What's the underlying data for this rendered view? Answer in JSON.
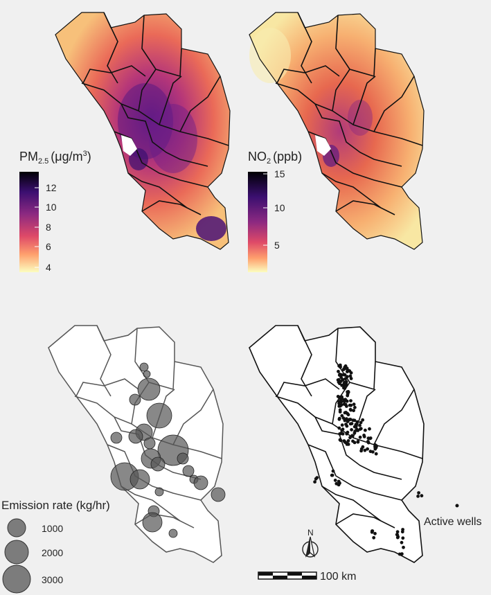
{
  "panels": {
    "pm25": {
      "legend_title_main": "PM",
      "legend_title_sub": "2.5",
      "legend_title_unit": "(μg/m",
      "legend_title_sup": "3",
      "legend_title_close": ")",
      "ticks": [
        "12",
        "10",
        "8",
        "6",
        "4"
      ],
      "colors": [
        "#000004",
        "#3b0f70",
        "#8c2981",
        "#de4968",
        "#fe9f6d",
        "#fcfdbf"
      ]
    },
    "no2": {
      "legend_title_main": "NO",
      "legend_title_sub": "2",
      "legend_title_unit": "(ppb)",
      "ticks": [
        "15",
        "10",
        "5"
      ],
      "colors": [
        "#000004",
        "#3b0f70",
        "#8c2981",
        "#de4968",
        "#fe9f6d",
        "#fcfdbf"
      ]
    },
    "emissions": {
      "legend_title": "Emission rate (kg/hr)",
      "sizes": [
        "1000",
        "2000",
        "3000"
      ],
      "point_color": "#555555"
    },
    "wells": {
      "legend_label": "Active wells",
      "scale_label": "100 km",
      "north_label": "N"
    }
  }
}
